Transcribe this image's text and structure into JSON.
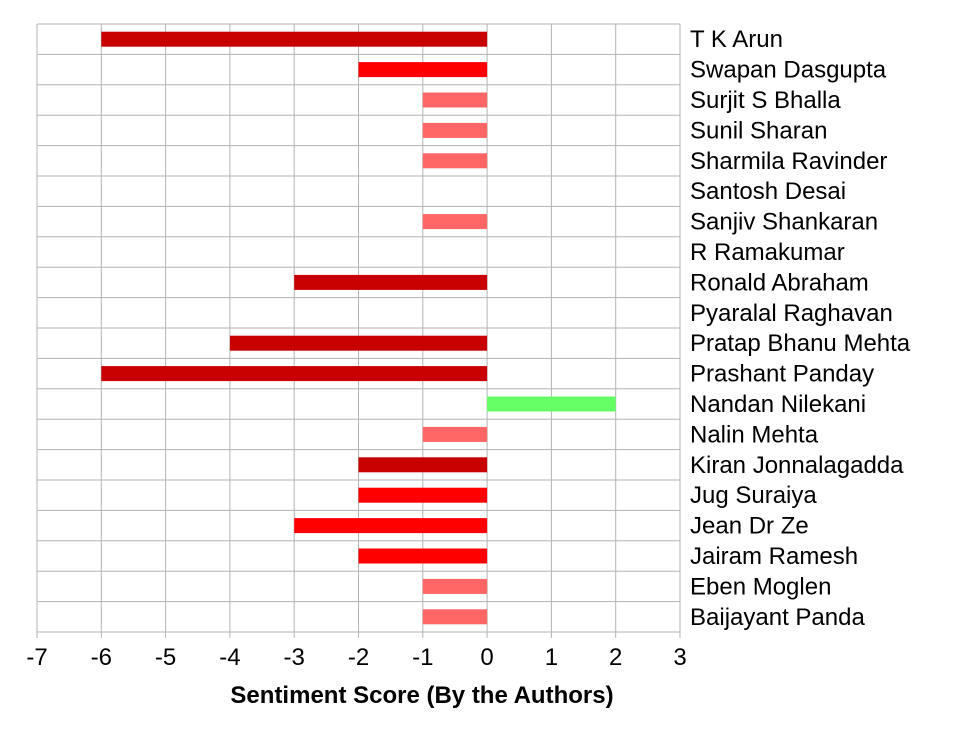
{
  "chart_data": {
    "type": "bar",
    "orientation": "horizontal",
    "xlabel": "Sentiment Score (By the Authors)",
    "ylabel": "",
    "xlim": [
      -7,
      3
    ],
    "xticks": [
      -7,
      -6,
      -5,
      -4,
      -3,
      -2,
      -1,
      0,
      1,
      2,
      3
    ],
    "grid": true,
    "legend": "none",
    "categories": [
      "T K Arun",
      "Swapan Dasgupta",
      "Surjit S Bhalla",
      "Sunil Sharan",
      "Sharmila Ravinder",
      "Santosh Desai",
      "Sanjiv Shankaran",
      "R Ramakumar",
      "Ronald Abraham",
      "Pyaralal Raghavan",
      "Pratap Bhanu Mehta",
      "Prashant Panday",
      "Nandan Nilekani",
      "Nalin Mehta",
      "Kiran Jonnalagadda",
      "Jug Suraiya",
      "Jean Dr Ze",
      "Jairam Ramesh",
      "Eben Moglen",
      "Baijayant Panda"
    ],
    "values": [
      -6,
      -2,
      -1,
      -1,
      -1,
      0,
      -1,
      0,
      -3,
      0,
      -4,
      -6,
      2,
      -1,
      -2,
      -2,
      -3,
      -2,
      -1,
      -1
    ],
    "bar_colors": [
      "#c80000",
      "#ff0000",
      "#ff6666",
      "#ff6666",
      "#ff6666",
      "#ff6666",
      "#ff6666",
      "#ff6666",
      "#c80000",
      "#ff6666",
      "#c80000",
      "#c80000",
      "#66ff66",
      "#ff6666",
      "#c80000",
      "#ff0000",
      "#ff0000",
      "#ff0000",
      "#ff6666",
      "#ff6666"
    ]
  }
}
